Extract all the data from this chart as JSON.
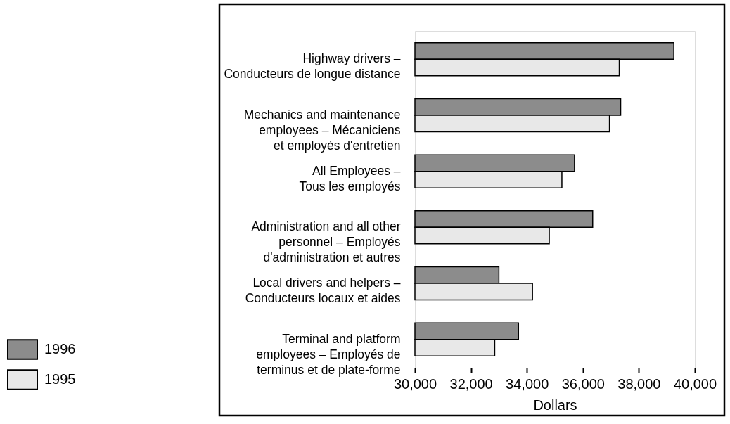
{
  "chart_data": {
    "type": "bar",
    "orientation": "horizontal",
    "xlabel": "Dollars",
    "categories": [
      "Highway drivers –\nConducteurs de longue distance",
      "Mechanics and maintenance\nemployees – Mécaniciens\net employés d'entretien",
      "All Employees –\nTous les employés",
      "Administration and all other\npersonnel – Employés\nd'administration et autres",
      "Local drivers and helpers –\nConducteurs locaux et aides",
      "Terminal and platform\nemployees – Employés de\nterminus et de plate-forme"
    ],
    "series": [
      {
        "name": "1996",
        "color": "#8c8c8c",
        "values": [
          39250,
          37350,
          35700,
          36350,
          33000,
          33700
        ]
      },
      {
        "name": "1995",
        "color": "#e8e8e8",
        "values": [
          37300,
          36950,
          35250,
          34800,
          34200,
          32850
        ]
      }
    ],
    "xlim": [
      30000,
      40000
    ],
    "xticks": [
      {
        "value": 30000,
        "label": "30,000"
      },
      {
        "value": 32000,
        "label": "32,000"
      },
      {
        "value": 34000,
        "label": "34,000"
      },
      {
        "value": 36000,
        "label": "36,000"
      },
      {
        "value": 38000,
        "label": "38,000"
      },
      {
        "value": 40000,
        "label": "40,000"
      }
    ],
    "legend": "bottom left"
  }
}
